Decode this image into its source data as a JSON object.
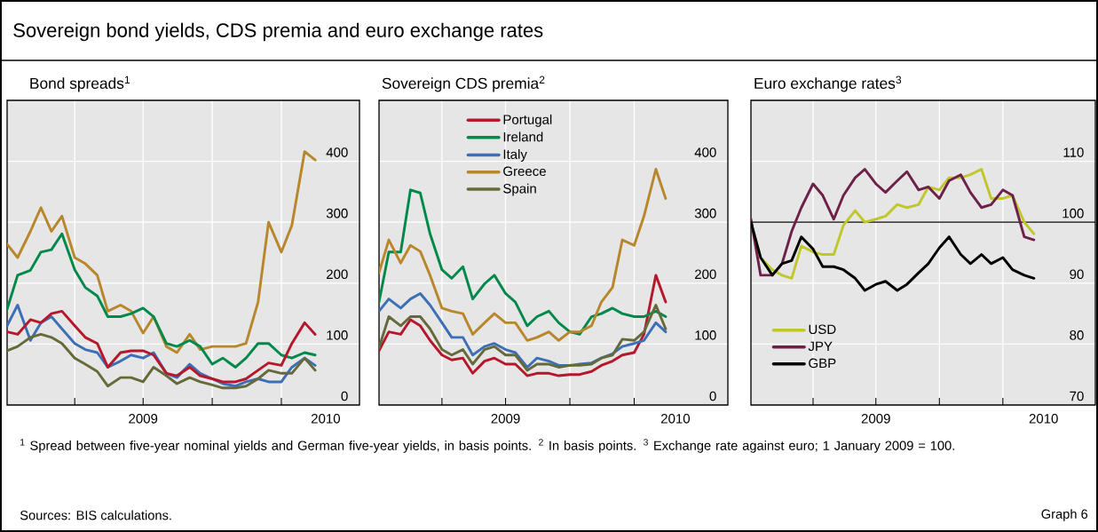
{
  "chart_data": [
    {
      "type": "line",
      "title": "Bond spreads$^{1}$",
      "x": [
        "2009-01-01",
        "2009-01-15",
        "2009-02-01",
        "2009-02-15",
        "2009-03-01",
        "2009-03-15",
        "2009-04-01",
        "2009-04-15",
        "2009-05-01",
        "2009-05-15",
        "2009-06-01",
        "2009-06-15",
        "2009-07-01",
        "2009-07-15",
        "2009-08-01",
        "2009-08-15",
        "2009-09-01",
        "2009-09-15",
        "2009-10-01",
        "2009-10-15",
        "2009-11-01",
        "2009-11-15",
        "2009-12-01",
        "2009-12-15",
        "2010-01-01",
        "2010-01-15",
        "2010-02-01",
        "2010-02-15"
      ],
      "xlim": [
        "2009-01-01",
        "2010-04-15"
      ],
      "xticks": [
        {
          "value": "2009-04-01",
          "label": null
        },
        {
          "value": "2009-07-01",
          "label": null
        },
        {
          "value": "2009-10-01",
          "label": null
        },
        {
          "value": "2010-01-01",
          "label": null
        },
        {
          "value": "2009-07-01",
          "label": "2009"
        },
        {
          "value": "2010-03-01",
          "label": "2010"
        }
      ],
      "ylim": [
        0,
        500
      ],
      "yticks": [
        0,
        100,
        200,
        300,
        400
      ],
      "grid": true,
      "series": [
        {
          "color": "#b8862b",
          "values": [
            264,
            242,
            285,
            324,
            285,
            310,
            242,
            232,
            213,
            154,
            164,
            154,
            118,
            145,
            96,
            86,
            116,
            91,
            96,
            96,
            96,
            101,
            169,
            300,
            251,
            295,
            416,
            402
          ]
        },
        {
          "color": "#00894a",
          "values": [
            157,
            213,
            221,
            251,
            255,
            281,
            222,
            193,
            179,
            145,
            145,
            150,
            159,
            145,
            101,
            96,
            106,
            96,
            67,
            77,
            62,
            77,
            101,
            101,
            82,
            77,
            86,
            82
          ]
        },
        {
          "color": "#3d6fb6",
          "values": [
            130,
            164,
            106,
            135,
            145,
            125,
            101,
            91,
            86,
            62,
            72,
            82,
            77,
            86,
            52,
            45,
            67,
            52,
            43,
            35,
            31,
            38,
            43,
            38,
            38,
            62,
            77,
            65
          ]
        },
        {
          "color": "#b5172b",
          "values": [
            120,
            116,
            140,
            135,
            150,
            154,
            130,
            111,
            101,
            62,
            86,
            89,
            89,
            82,
            52,
            48,
            62,
            48,
            43,
            38,
            38,
            43,
            57,
            69,
            65,
            101,
            135,
            116
          ]
        },
        {
          "color": "#666a3a",
          "values": [
            89,
            96,
            111,
            116,
            111,
            101,
            77,
            67,
            55,
            31,
            45,
            45,
            38,
            62,
            48,
            35,
            45,
            38,
            33,
            28,
            28,
            31,
            43,
            57,
            52,
            52,
            77,
            57
          ]
        }
      ],
      "annotations": [
        "Sovereign bond yields, CDS premia and euro exchange rates",
        "$^{1}$ Spread between five-year nominal yields and German five-year yields, in basis points.   $^{2}$ In basis points.   $^{3}$ Exchange rate against euro; 1 January 2009 = 100.",
        "Sources: BIS calculations.",
        "Graph 6"
      ]
    },
    {
      "type": "line",
      "title": "Sovereign CDS premia$^{2}$",
      "x": [
        "2009-01-01",
        "2009-01-15",
        "2009-02-01",
        "2009-02-15",
        "2009-03-01",
        "2009-03-15",
        "2009-04-01",
        "2009-04-15",
        "2009-05-01",
        "2009-05-15",
        "2009-06-01",
        "2009-06-15",
        "2009-07-01",
        "2009-07-15",
        "2009-08-01",
        "2009-08-15",
        "2009-09-01",
        "2009-09-15",
        "2009-10-01",
        "2009-10-15",
        "2009-11-01",
        "2009-11-15",
        "2009-12-01",
        "2009-12-15",
        "2010-01-01",
        "2010-01-15",
        "2010-02-01",
        "2010-02-15"
      ],
      "xlim": [
        "2009-01-01",
        "2010-05-15"
      ],
      "xticks": [
        {
          "value": "2009-04-01",
          "label": null
        },
        {
          "value": "2009-07-01",
          "label": null
        },
        {
          "value": "2009-10-01",
          "label": null
        },
        {
          "value": "2010-01-01",
          "label": null
        },
        {
          "value": "2009-07-01",
          "label": "2009"
        },
        {
          "value": "2010-03-01",
          "label": "2010"
        }
      ],
      "ylim": [
        0,
        500
      ],
      "yticks": [
        0,
        100,
        200,
        300,
        400
      ],
      "grid": true,
      "legend": "top left",
      "series": [
        {
          "name": "Portugal",
          "color": "#b5172b",
          "values": [
            89,
            120,
            116,
            140,
            130,
            106,
            82,
            74,
            77,
            52,
            72,
            77,
            67,
            67,
            48,
            52,
            52,
            48,
            50,
            50,
            55,
            65,
            72,
            82,
            86,
            116,
            213,
            169
          ]
        },
        {
          "name": "Ireland",
          "color": "#00894a",
          "values": [
            169,
            251,
            251,
            353,
            348,
            281,
            222,
            208,
            227,
            174,
            199,
            213,
            183,
            169,
            130,
            145,
            154,
            135,
            120,
            116,
            145,
            150,
            159,
            150,
            145,
            145,
            154,
            145
          ]
        },
        {
          "name": "Italy",
          "color": "#3d6fb6",
          "values": [
            154,
            174,
            159,
            174,
            183,
            164,
            135,
            111,
            111,
            82,
            96,
            101,
            91,
            86,
            62,
            77,
            72,
            65,
            65,
            67,
            69,
            77,
            84,
            96,
            101,
            106,
            135,
            120
          ]
        },
        {
          "name": "Greece",
          "color": "#b8862b",
          "values": [
            217,
            271,
            233,
            262,
            252,
            213,
            159,
            154,
            150,
            116,
            135,
            150,
            135,
            135,
            106,
            111,
            120,
            106,
            120,
            120,
            130,
            169,
            193,
            271,
            262,
            310,
            387,
            339
          ]
        },
        {
          "name": "Spain",
          "color": "#666a3a",
          "values": [
            94,
            145,
            130,
            145,
            145,
            125,
            91,
            82,
            91,
            67,
            91,
            96,
            82,
            82,
            57,
            67,
            67,
            62,
            65,
            65,
            67,
            77,
            82,
            108,
            106,
            120,
            164,
            125
          ]
        }
      ]
    },
    {
      "type": "line",
      "title": "Euro exchange rates$^{3}$",
      "x": [
        "2009-01-01",
        "2009-01-15",
        "2009-02-01",
        "2009-02-15",
        "2009-03-01",
        "2009-03-15",
        "2009-04-01",
        "2009-04-15",
        "2009-05-01",
        "2009-05-15",
        "2009-06-01",
        "2009-06-15",
        "2009-07-01",
        "2009-07-15",
        "2009-08-01",
        "2009-08-15",
        "2009-09-01",
        "2009-09-15",
        "2009-10-01",
        "2009-10-15",
        "2009-11-01",
        "2009-11-15",
        "2009-12-01",
        "2009-12-15",
        "2010-01-01",
        "2010-01-15",
        "2010-02-01",
        "2010-02-15"
      ],
      "xlim": [
        "2009-01-01",
        "2010-05-15"
      ],
      "xticks": [
        {
          "value": "2009-04-01",
          "label": null
        },
        {
          "value": "2009-07-01",
          "label": null
        },
        {
          "value": "2009-10-01",
          "label": null
        },
        {
          "value": "2010-01-01",
          "label": null
        },
        {
          "value": "2009-07-01",
          "label": "2009"
        },
        {
          "value": "2010-03-01",
          "label": "2010"
        }
      ],
      "ylim": [
        70,
        120
      ],
      "yticks": [
        70,
        80,
        90,
        100,
        110
      ],
      "grid": true,
      "legend": "bottom left",
      "ref_lines": [
        {
          "axis": "y",
          "value": 100,
          "color": "#000000"
        }
      ],
      "series": [
        {
          "name": "USD",
          "color": "#c0c72a",
          "values": [
            100.0,
            94.2,
            92.2,
            91.3,
            90.8,
            96.1,
            95.1,
            94.7,
            94.7,
            99.5,
            101.9,
            100,
            100.5,
            101,
            102.9,
            102.4,
            102.9,
            105.8,
            105.3,
            107.3,
            107.3,
            107.8,
            108.7,
            103.9,
            103.9,
            104.4,
            100,
            98.1
          ]
        },
        {
          "name": "JPY",
          "color": "#6e2148",
          "values": [
            100.5,
            91.3,
            91.3,
            93.2,
            98.5,
            102.4,
            106.3,
            104.4,
            100.5,
            104.4,
            107.3,
            108.7,
            106.3,
            104.9,
            106.8,
            108.3,
            105.3,
            105.8,
            103.9,
            106.8,
            107.8,
            104.9,
            102.4,
            102.9,
            105.3,
            104.4,
            97.6,
            97.1
          ]
        },
        {
          "name": "GBP",
          "color": "#000000",
          "values": [
            100,
            94.2,
            91.3,
            93.2,
            93.7,
            97.6,
            95.6,
            92.7,
            92.7,
            92.2,
            90.8,
            88.8,
            89.8,
            90.3,
            88.8,
            89.8,
            91.7,
            93.2,
            95.8,
            97.6,
            94.7,
            93.2,
            94.7,
            93.2,
            94.2,
            92.2,
            91.3,
            90.8
          ]
        }
      ]
    }
  ]
}
